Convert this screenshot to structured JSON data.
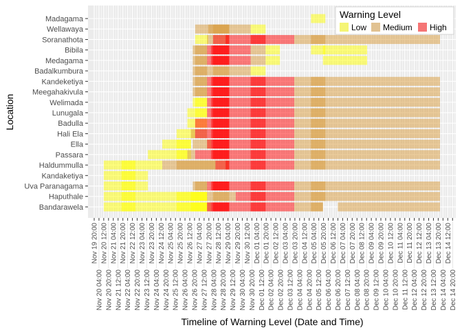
{
  "chart_data": {
    "type": "timeline",
    "xlabel": "Timeline of Warning Level (Date and Time)",
    "ylabel": "Location",
    "legend": {
      "title": "Warning Level",
      "position": "bottom",
      "items": [
        {
          "label": "Low",
          "color": "#FFFF00"
        },
        {
          "label": "Medium",
          "color": "#D89A3A"
        },
        {
          "label": "High",
          "color": "#FF0000"
        }
      ]
    },
    "colors": {
      "Low": "#FFFF00",
      "Medium": "#D89A3A",
      "High": "#FF0000",
      "panel": "#EBEBEB"
    },
    "grid": true,
    "categories": [
      "Madagama",
      "Wellawaya",
      "Soranathota",
      "Bibila",
      "Medagama",
      "Badalkumbura",
      "Kandeketiya",
      "Meegahakivula",
      "Welimada",
      "Lunugala",
      "Badulla",
      "Hali Ela",
      "Ella",
      "Passara",
      "Haldummulla",
      "Kandaketiya",
      "Uva Paranagama",
      "Haputhale",
      "Bandarawela"
    ],
    "x_ticks": [
      "Nov 19 20:00",
      "Nov 20 04:00",
      "Nov 20 12:00",
      "Nov 20 20:00",
      "Nov 21 04:00",
      "Nov 21 12:00",
      "Nov 21 20:00",
      "Nov 22 04:00",
      "Nov 22 12:00",
      "Nov 22 20:00",
      "Nov 23 04:00",
      "Nov 23 12:00",
      "Nov 23 20:00",
      "Nov 24 04:00",
      "Nov 24 12:00",
      "Nov 24 20:00",
      "Nov 25 04:00",
      "Nov 25 12:00",
      "Nov 25 20:00",
      "Nov 26 04:00",
      "Nov 26 12:00",
      "Nov 26 20:00",
      "Nov 27 04:00",
      "Nov 27 12:00",
      "Nov 27 20:00",
      "Nov 28 04:00",
      "Nov 28 12:00",
      "Nov 28 20:00",
      "Nov 29 04:00",
      "Nov 29 12:00",
      "Nov 29 20:00",
      "Nov 30 04:00",
      "Nov 30 12:00",
      "Nov 30 20:00",
      "Dec 01 04:00",
      "Dec 01 12:00",
      "Dec 01 20:00",
      "Dec 02 04:00",
      "Dec 02 12:00",
      "Dec 02 20:00",
      "Dec 03 04:00",
      "Dec 03 12:00",
      "Dec 03 20:00",
      "Dec 04 04:00",
      "Dec 04 12:00",
      "Dec 04 20:00",
      "Dec 05 04:00",
      "Dec 05 12:00",
      "Dec 05 20:00",
      "Dec 06 04:00",
      "Dec 06 12:00",
      "Dec 06 20:00",
      "Dec 07 04:00",
      "Dec 07 12:00",
      "Dec 07 20:00",
      "Dec 08 04:00",
      "Dec 08 12:00",
      "Dec 08 20:00",
      "Dec 09 04:00",
      "Dec 09 12:00",
      "Dec 09 20:00",
      "Dec 10 04:00",
      "Dec 10 12:00",
      "Dec 10 20:00",
      "Dec 11 04:00",
      "Dec 11 12:00",
      "Dec 11 20:00",
      "Dec 12 04:00",
      "Dec 12 12:00",
      "Dec 12 20:00",
      "Dec 13 04:00",
      "Dec 13 12:00",
      "Dec 13 20:00",
      "Dec 14 04:00",
      "Dec 14 12:00",
      "Dec 14 20:00"
    ],
    "series": {
      "Madagama": [
        [
          "Dec 04 23:00",
          "Dec 05 23:00",
          "Low"
        ]
      ],
      "Wellawaya": [
        [
          "Nov 26 21:00",
          "Nov 30 18:00",
          "Medium"
        ],
        [
          "Nov 27 19:00",
          "Nov 29 06:00",
          "Medium"
        ],
        [
          "Nov 28 03:00",
          "Nov 29 06:00",
          "Medium"
        ],
        [
          "Nov 30 18:00",
          "Dec 01 19:00",
          "Low"
        ]
      ],
      "Soranathota": [
        [
          "Nov 26 21:00",
          "Nov 27 19:00",
          "Low"
        ],
        [
          "Nov 27 17:00",
          "Nov 29 06:00",
          "Medium"
        ],
        [
          "Nov 28 03:00",
          "Dec 03 19:00",
          "High"
        ],
        [
          "Nov 29 00:00",
          "Nov 29 06:00",
          "High"
        ],
        [
          "Nov 30 18:00",
          "Dec 01 19:00",
          "High"
        ],
        [
          "Dec 03 19:00",
          "Dec 13 23:00",
          "Medium"
        ],
        [
          "Dec 04 23:00",
          "Dec 05 23:00",
          "Medium"
        ]
      ],
      "Bibila": [
        [
          "Nov 26 17:00",
          "Nov 27 17:00",
          "Medium"
        ],
        [
          "Nov 26 21:00",
          "Nov 27 17:00",
          "Medium"
        ],
        [
          "Nov 27 17:00",
          "Nov 30 18:00",
          "High"
        ],
        [
          "Nov 28 00:00",
          "Nov 29 06:00",
          "High"
        ],
        [
          "Nov 28 03:00",
          "Nov 29 06:00",
          "High"
        ],
        [
          "Nov 30 18:00",
          "Dec 01 19:00",
          "Medium"
        ],
        [
          "Dec 01 19:00",
          "Dec 02 19:00",
          "Low"
        ],
        [
          "Dec 04 23:00",
          "Dec 05 23:00",
          "Low"
        ],
        [
          "Dec 05 19:00",
          "Dec 08 21:00",
          "Low"
        ]
      ],
      "Medagama": [
        [
          "Nov 26 17:00",
          "Nov 27 17:00",
          "Medium"
        ],
        [
          "Nov 26 21:00",
          "Nov 27 17:00",
          "Medium"
        ],
        [
          "Nov 27 17:00",
          "Nov 30 18:00",
          "High"
        ],
        [
          "Nov 28 00:00",
          "Nov 29 06:00",
          "High"
        ],
        [
          "Nov 28 03:00",
          "Nov 29 06:00",
          "High"
        ],
        [
          "Nov 30 18:00",
          "Dec 01 19:00",
          "Medium"
        ],
        [
          "Dec 01 19:00",
          "Dec 02 19:00",
          "Low"
        ],
        [
          "Dec 05 19:00",
          "Dec 08 21:00",
          "Low"
        ]
      ],
      "Badalkumbura": [
        [
          "Nov 26 17:00",
          "Nov 30 18:00",
          "Medium"
        ],
        [
          "Nov 26 21:00",
          "Nov 27 17:00",
          "Medium"
        ],
        [
          "Nov 28 03:00",
          "Nov 29 06:00",
          "Medium"
        ],
        [
          "Nov 30 18:00",
          "Dec 01 19:00",
          "Low"
        ]
      ],
      "Kandeketiya": [
        [
          "Nov 26 17:00",
          "Nov 27 17:00",
          "Medium"
        ],
        [
          "Nov 26 21:00",
          "Nov 27 17:00",
          "Medium"
        ],
        [
          "Nov 27 17:00",
          "Dec 03 19:00",
          "High"
        ],
        [
          "Nov 28 00:00",
          "Nov 29 06:00",
          "High"
        ],
        [
          "Nov 28 03:00",
          "Nov 29 06:00",
          "High"
        ],
        [
          "Nov 30 18:00",
          "Dec 01 19:00",
          "High"
        ],
        [
          "Dec 03 19:00",
          "Dec 13 23:00",
          "Medium"
        ],
        [
          "Dec 04 23:00",
          "Dec 05 23:00",
          "Medium"
        ]
      ],
      "Meegahakivula": [
        [
          "Nov 26 17:00",
          "Nov 27 17:00",
          "Medium"
        ],
        [
          "Nov 26 21:00",
          "Nov 27 17:00",
          "Medium"
        ],
        [
          "Nov 27 17:00",
          "Dec 03 19:00",
          "High"
        ],
        [
          "Nov 28 00:00",
          "Nov 29 06:00",
          "High"
        ],
        [
          "Nov 28 03:00",
          "Nov 29 06:00",
          "High"
        ],
        [
          "Nov 30 18:00",
          "Dec 01 19:00",
          "High"
        ],
        [
          "Dec 03 19:00",
          "Dec 13 23:00",
          "Medium"
        ],
        [
          "Dec 04 23:00",
          "Dec 05 23:00",
          "Medium"
        ]
      ],
      "Welimada": [
        [
          "Nov 26 17:00",
          "Nov 27 17:00",
          "Low"
        ],
        [
          "Nov 26 21:00",
          "Nov 27 17:00",
          "Low"
        ],
        [
          "Nov 27 17:00",
          "Dec 03 19:00",
          "High"
        ],
        [
          "Nov 28 00:00",
          "Nov 29 06:00",
          "High"
        ],
        [
          "Nov 28 03:00",
          "Nov 29 06:00",
          "High"
        ],
        [
          "Nov 30 18:00",
          "Dec 01 19:00",
          "High"
        ],
        [
          "Dec 03 19:00",
          "Dec 13 23:00",
          "Medium"
        ],
        [
          "Dec 04 23:00",
          "Dec 05 23:00",
          "Medium"
        ]
      ],
      "Lunugala": [
        [
          "Nov 26 08:00",
          "Nov 27 17:00",
          "Low"
        ],
        [
          "Nov 26 21:00",
          "Nov 27 17:00",
          "Low"
        ],
        [
          "Nov 27 17:00",
          "Dec 03 19:00",
          "High"
        ],
        [
          "Nov 28 00:00",
          "Nov 29 06:00",
          "High"
        ],
        [
          "Nov 28 03:00",
          "Nov 29 06:00",
          "High"
        ],
        [
          "Nov 30 18:00",
          "Dec 01 19:00",
          "High"
        ],
        [
          "Dec 03 19:00",
          "Dec 13 23:00",
          "Medium"
        ],
        [
          "Dec 04 23:00",
          "Dec 05 23:00",
          "Medium"
        ]
      ],
      "Badulla": [
        [
          "Nov 26 08:00",
          "Nov 27 17:00",
          "Low"
        ],
        [
          "Nov 26 21:00",
          "Nov 27 17:00",
          "High"
        ],
        [
          "Nov 27 17:00",
          "Dec 03 19:00",
          "High"
        ],
        [
          "Nov 28 00:00",
          "Nov 29 06:00",
          "High"
        ],
        [
          "Nov 28 03:00",
          "Nov 29 06:00",
          "High"
        ],
        [
          "Nov 30 18:00",
          "Dec 01 19:00",
          "High"
        ],
        [
          "Dec 03 19:00",
          "Dec 13 23:00",
          "Medium"
        ],
        [
          "Dec 04 23:00",
          "Dec 05 23:00",
          "Medium"
        ]
      ],
      "Hali Ela": [
        [
          "Nov 25 14:00",
          "Nov 26 21:00",
          "Low"
        ],
        [
          "Nov 26 14:00",
          "Nov 27 17:00",
          "Medium"
        ],
        [
          "Nov 26 21:00",
          "Nov 27 17:00",
          "High"
        ],
        [
          "Nov 27 17:00",
          "Dec 03 19:00",
          "High"
        ],
        [
          "Nov 28 00:00",
          "Nov 29 06:00",
          "High"
        ],
        [
          "Nov 28 03:00",
          "Nov 29 06:00",
          "High"
        ],
        [
          "Nov 30 18:00",
          "Dec 01 19:00",
          "High"
        ],
        [
          "Dec 03 19:00",
          "Dec 13 23:00",
          "Medium"
        ],
        [
          "Dec 04 23:00",
          "Dec 05 23:00",
          "Medium"
        ]
      ],
      "Ella": [
        [
          "Nov 24 14:00",
          "Nov 26 14:00",
          "Low"
        ],
        [
          "Nov 25 14:00",
          "Nov 26 14:00",
          "Low"
        ],
        [
          "Nov 26 17:00",
          "Nov 28 00:00",
          "Medium"
        ],
        [
          "Nov 27 17:00",
          "Dec 03 19:00",
          "High"
        ],
        [
          "Nov 28 00:00",
          "Nov 29 06:00",
          "High"
        ],
        [
          "Nov 28 03:00",
          "Nov 29 06:00",
          "High"
        ],
        [
          "Nov 30 18:00",
          "Dec 01 19:00",
          "High"
        ],
        [
          "Dec 03 19:00",
          "Dec 13 23:00",
          "Medium"
        ],
        [
          "Dec 04 23:00",
          "Dec 05 23:00",
          "Medium"
        ]
      ],
      "Passara": [
        [
          "Nov 23 14:00",
          "Nov 26 14:00",
          "Low"
        ],
        [
          "Nov 25 14:00",
          "Nov 26 08:00",
          "Low"
        ],
        [
          "Nov 26 08:00",
          "Nov 26 21:00",
          "Medium"
        ],
        [
          "Nov 26 21:00",
          "Nov 27 17:00",
          "High"
        ],
        [
          "Nov 27 17:00",
          "Dec 03 19:00",
          "High"
        ],
        [
          "Nov 28 00:00",
          "Nov 29 06:00",
          "High"
        ],
        [
          "Nov 28 03:00",
          "Nov 29 06:00",
          "High"
        ],
        [
          "Nov 30 18:00",
          "Dec 01 19:00",
          "High"
        ],
        [
          "Dec 03 19:00",
          "Dec 13 23:00",
          "Medium"
        ],
        [
          "Dec 04 23:00",
          "Dec 05 23:00",
          "Medium"
        ]
      ],
      "Haldummulla": [
        [
          "Nov 20 12:00",
          "Nov 24 14:00",
          "Low"
        ],
        [
          "Nov 21 18:00",
          "Nov 22 17:00",
          "Low"
        ],
        [
          "Nov 24 14:00",
          "Nov 29 06:00",
          "Medium"
        ],
        [
          "Nov 25 14:00",
          "Nov 28 07:00",
          "Medium"
        ],
        [
          "Nov 28 07:00",
          "Dec 03 19:00",
          "High"
        ],
        [
          "Nov 29 00:00",
          "Nov 29 06:00",
          "High"
        ],
        [
          "Nov 30 18:00",
          "Dec 01 19:00",
          "High"
        ],
        [
          "Dec 03 19:00",
          "Dec 13 23:00",
          "Medium"
        ],
        [
          "Dec 04 23:00",
          "Dec 05 23:00",
          "Medium"
        ]
      ],
      "Kandaketiya": [
        [
          "Nov 20 12:00",
          "Nov 23 14:00",
          "Low"
        ],
        [
          "Nov 21 18:00",
          "Nov 22 17:00",
          "Low"
        ]
      ],
      "Uva Paranagama": [
        [
          "Nov 20 12:00",
          "Nov 23 14:00",
          "Low"
        ],
        [
          "Nov 21 18:00",
          "Nov 22 17:00",
          "Low"
        ],
        [
          "Nov 26 17:00",
          "Nov 27 17:00",
          "Medium"
        ],
        [
          "Nov 26 21:00",
          "Nov 27 17:00",
          "Medium"
        ],
        [
          "Nov 27 17:00",
          "Dec 03 19:00",
          "High"
        ],
        [
          "Nov 28 00:00",
          "Nov 29 06:00",
          "High"
        ],
        [
          "Nov 28 03:00",
          "Nov 29 06:00",
          "High"
        ],
        [
          "Nov 30 18:00",
          "Dec 01 19:00",
          "High"
        ],
        [
          "Dec 03 19:00",
          "Dec 13 23:00",
          "Medium"
        ],
        [
          "Dec 04 23:00",
          "Dec 05 23:00",
          "Medium"
        ]
      ],
      "Haputhale": [
        [
          "Nov 20 12:00",
          "Nov 27 17:00",
          "Low"
        ],
        [
          "Nov 21 18:00",
          "Nov 22 17:00",
          "Low"
        ],
        [
          "Nov 25 14:00",
          "Nov 27 17:00",
          "Low"
        ],
        [
          "Nov 26 14:00",
          "Nov 27 17:00",
          "Low"
        ],
        [
          "Nov 27 17:00",
          "Nov 29 17:00",
          "Medium"
        ],
        [
          "Nov 28 03:00",
          "Nov 29 06:00",
          "Medium"
        ],
        [
          "Nov 29 17:00",
          "Dec 03 19:00",
          "High"
        ],
        [
          "Nov 30 18:00",
          "Dec 01 19:00",
          "High"
        ],
        [
          "Dec 03 19:00",
          "Dec 13 23:00",
          "Medium"
        ],
        [
          "Dec 04 23:00",
          "Dec 05 23:00",
          "Medium"
        ]
      ],
      "Bandarawela": [
        [
          "Nov 20 12:00",
          "Nov 27 17:00",
          "Low"
        ],
        [
          "Nov 21 18:00",
          "Nov 22 17:00",
          "Low"
        ],
        [
          "Nov 25 14:00",
          "Nov 27 17:00",
          "Low"
        ],
        [
          "Nov 26 14:00",
          "Nov 27 17:00",
          "Low"
        ],
        [
          "Nov 27 17:00",
          "Nov 28 00:00",
          "Medium"
        ],
        [
          "Nov 27 17:00",
          "Dec 03 19:00",
          "High"
        ],
        [
          "Nov 28 00:00",
          "Nov 29 06:00",
          "High"
        ],
        [
          "Nov 28 03:00",
          "Nov 29 06:00",
          "High"
        ],
        [
          "Nov 30 18:00",
          "Dec 01 19:00",
          "High"
        ],
        [
          "Dec 03 19:00",
          "Dec 05 19:00",
          "Medium"
        ],
        [
          "Dec 04 23:00",
          "Dec 05 19:00",
          "Medium"
        ],
        [
          "Dec 06 20:00",
          "Dec 13 23:00",
          "Medium"
        ]
      ]
    }
  }
}
